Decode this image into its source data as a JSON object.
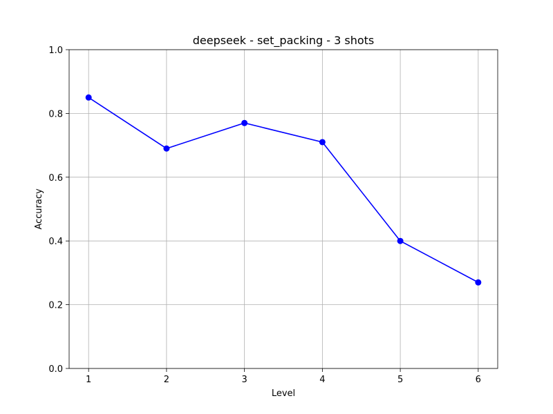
{
  "chart_data": {
    "type": "line",
    "title": "deepseek - set_packing - 3 shots",
    "xlabel": "Level",
    "ylabel": "Accuracy",
    "x": [
      1,
      2,
      3,
      4,
      5,
      6
    ],
    "x_ticks": [
      "1",
      "2",
      "3",
      "4",
      "5",
      "6"
    ],
    "xlim": [
      0.75,
      6.25
    ],
    "ylim": [
      0.0,
      1.0
    ],
    "y_ticks": [
      "0.0",
      "0.2",
      "0.4",
      "0.6",
      "0.8",
      "1.0"
    ],
    "grid": true,
    "series": [
      {
        "values": [
          0.85,
          0.69,
          0.77,
          0.71,
          0.4,
          0.27
        ],
        "color": "#0000ff",
        "marker": "circle"
      }
    ]
  }
}
